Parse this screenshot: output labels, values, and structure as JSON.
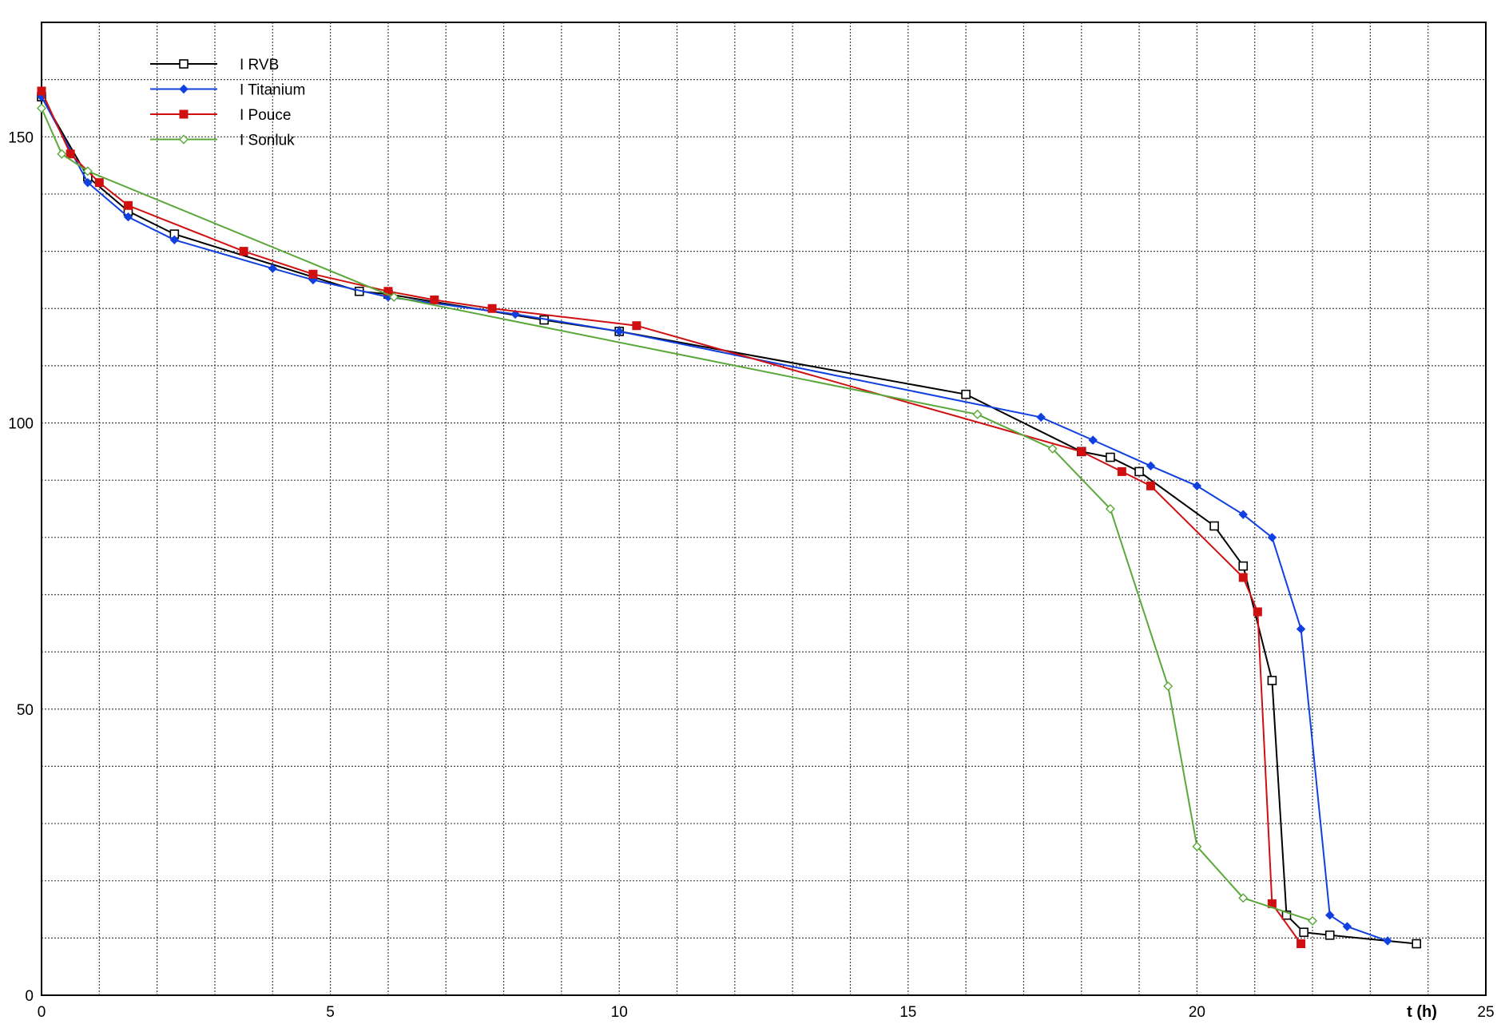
{
  "chart_data": {
    "type": "line",
    "title": "",
    "xlabel": "t (h)",
    "ylabel": "",
    "xlim": [
      0,
      25
    ],
    "ylim": [
      0,
      170
    ],
    "x_ticks": [
      0,
      5,
      10,
      15,
      20,
      25
    ],
    "y_ticks": [
      0,
      50,
      100,
      150
    ],
    "grid": true,
    "legend": "top-left",
    "series": [
      {
        "name": "I RVB",
        "color": "#000000",
        "marker": "open-square",
        "points": [
          [
            0,
            157
          ],
          [
            0.8,
            143
          ],
          [
            1.5,
            137
          ],
          [
            2.3,
            133
          ],
          [
            5.5,
            123
          ],
          [
            6,
            122.5
          ],
          [
            8.7,
            118
          ],
          [
            10,
            116
          ],
          [
            16,
            105
          ],
          [
            18,
            95
          ],
          [
            18.5,
            94
          ],
          [
            19,
            91.5
          ],
          [
            20.3,
            82
          ],
          [
            20.8,
            75
          ],
          [
            21.3,
            55
          ],
          [
            21.55,
            14
          ],
          [
            21.85,
            11
          ],
          [
            22.3,
            10.5
          ],
          [
            23.8,
            9
          ]
        ]
      },
      {
        "name": "I Titanium",
        "color": "#1040e0",
        "marker": "filled-diamond",
        "points": [
          [
            0,
            157
          ],
          [
            0.8,
            142
          ],
          [
            1.5,
            136
          ],
          [
            2.3,
            132
          ],
          [
            4,
            127
          ],
          [
            4.7,
            125
          ],
          [
            6,
            122
          ],
          [
            8.2,
            119
          ],
          [
            10,
            116
          ],
          [
            17.3,
            101
          ],
          [
            18.2,
            97
          ],
          [
            19.2,
            92.5
          ],
          [
            20,
            89
          ],
          [
            20.8,
            84
          ],
          [
            21.3,
            80
          ],
          [
            21.8,
            64
          ],
          [
            22.3,
            14
          ],
          [
            22.6,
            12
          ],
          [
            23.3,
            9.5
          ]
        ]
      },
      {
        "name": "I Pouce",
        "color": "#d01010",
        "marker": "filled-square",
        "points": [
          [
            0,
            158
          ],
          [
            0.5,
            147
          ],
          [
            1,
            142
          ],
          [
            1.5,
            138
          ],
          [
            3.5,
            130
          ],
          [
            4.7,
            126
          ],
          [
            6,
            123
          ],
          [
            6.8,
            121.5
          ],
          [
            7.8,
            120
          ],
          [
            10.3,
            117
          ],
          [
            18,
            95
          ],
          [
            18.7,
            91.5
          ],
          [
            19.2,
            89
          ],
          [
            20.8,
            73
          ],
          [
            21.05,
            67
          ],
          [
            21.3,
            16
          ],
          [
            21.8,
            9
          ]
        ]
      },
      {
        "name": "I Sonluk",
        "color": "#5aa83a",
        "marker": "open-diamond",
        "points": [
          [
            0,
            155
          ],
          [
            0.35,
            147
          ],
          [
            0.8,
            144
          ],
          [
            6.1,
            122
          ],
          [
            16.2,
            101.5
          ],
          [
            17.5,
            95.5
          ],
          [
            18.5,
            85
          ],
          [
            19.5,
            54
          ],
          [
            20,
            26
          ],
          [
            20.8,
            17
          ],
          [
            22,
            13
          ]
        ]
      }
    ]
  }
}
